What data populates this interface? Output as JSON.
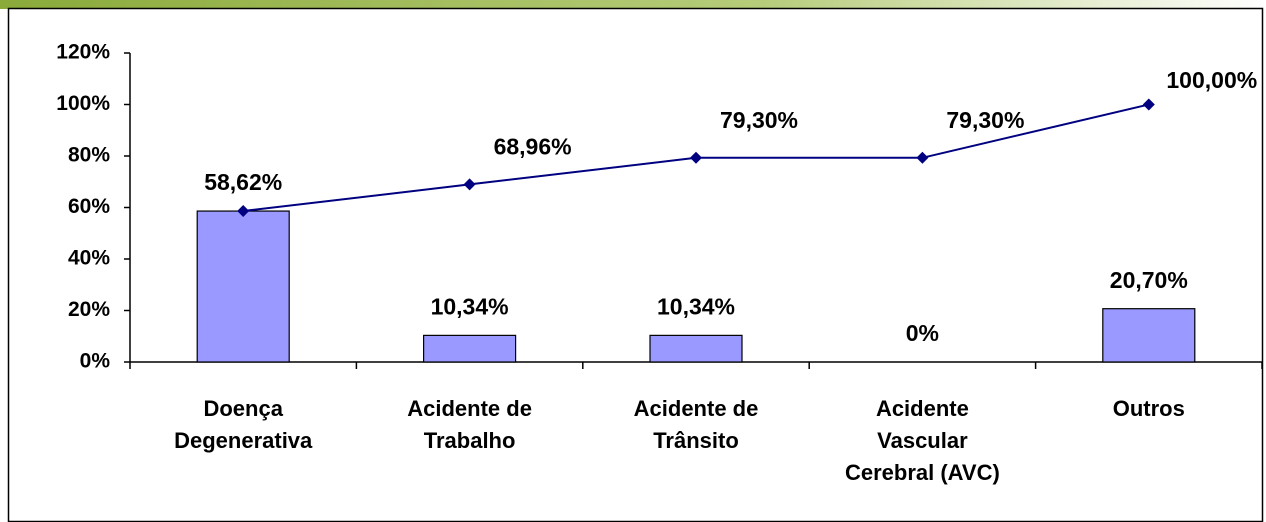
{
  "chart_data": {
    "type": "bar-line",
    "categories": [
      "Doença Degenerativa",
      "Acidente de Trabalho",
      "Acidente de Trânsito",
      "Acidente Vascular Cerebral (AVC)",
      "Outros"
    ],
    "series": [
      {
        "type": "bar",
        "color": "#9999ff",
        "values": [
          58.62,
          10.34,
          10.34,
          0,
          20.7
        ],
        "value_labels": [
          "58,62%",
          "10,34%",
          "10,34%",
          "0%",
          "20,70%"
        ]
      },
      {
        "type": "line",
        "color": "#000080",
        "values": [
          58.62,
          68.96,
          79.3,
          79.3,
          100.0
        ],
        "value_labels": [
          null,
          "68,96%",
          "79,30%",
          "79,30%",
          "100,00%"
        ]
      }
    ],
    "ylim": [
      0,
      120
    ],
    "yticks": [
      {
        "value": 0,
        "label": "0%"
      },
      {
        "value": 20,
        "label": "20%"
      },
      {
        "value": 40,
        "label": "40%"
      },
      {
        "value": 60,
        "label": "60%"
      },
      {
        "value": 80,
        "label": "80%"
      },
      {
        "value": 100,
        "label": "100%"
      },
      {
        "value": 120,
        "label": "120%"
      }
    ],
    "grid": false
  }
}
